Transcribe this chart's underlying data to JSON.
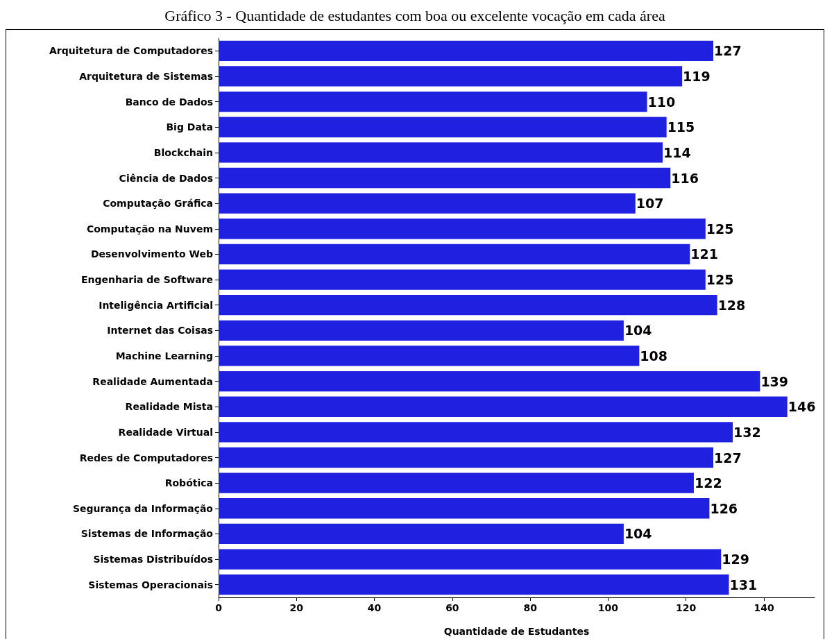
{
  "chart_data": {
    "type": "bar",
    "orientation": "horizontal",
    "title": "Gráfico 3 - Quantidade de estudantes com boa ou excelente vocação em cada área",
    "xlabel": "Quantidade de Estudantes",
    "categories": [
      "Arquitetura de Computadores",
      "Arquitetura de Sistemas",
      "Banco de Dados",
      "Big Data",
      "Blockchain",
      "Ciência de Dados",
      "Computação Gráfica",
      "Computação na Nuvem",
      "Desenvolvimento Web",
      "Engenharia de Software",
      "Inteligência Artificial",
      "Internet das Coisas",
      "Machine Learning",
      "Realidade Aumentada",
      "Realidade Mista",
      "Realidade Virtual",
      "Redes de Computadores",
      "Robótica",
      "Segurança da Informação",
      "Sistemas de Informação",
      "Sistemas Distribuídos",
      "Sistemas Operacionais"
    ],
    "values": [
      127,
      119,
      110,
      115,
      114,
      116,
      107,
      125,
      121,
      125,
      128,
      104,
      108,
      139,
      146,
      132,
      127,
      122,
      126,
      104,
      129,
      131
    ],
    "color": "#2020e0",
    "xlim": [
      0,
      153
    ],
    "xticks": [
      0,
      20,
      40,
      60,
      80,
      100,
      120,
      140
    ],
    "grid": false,
    "data_labels": true
  }
}
